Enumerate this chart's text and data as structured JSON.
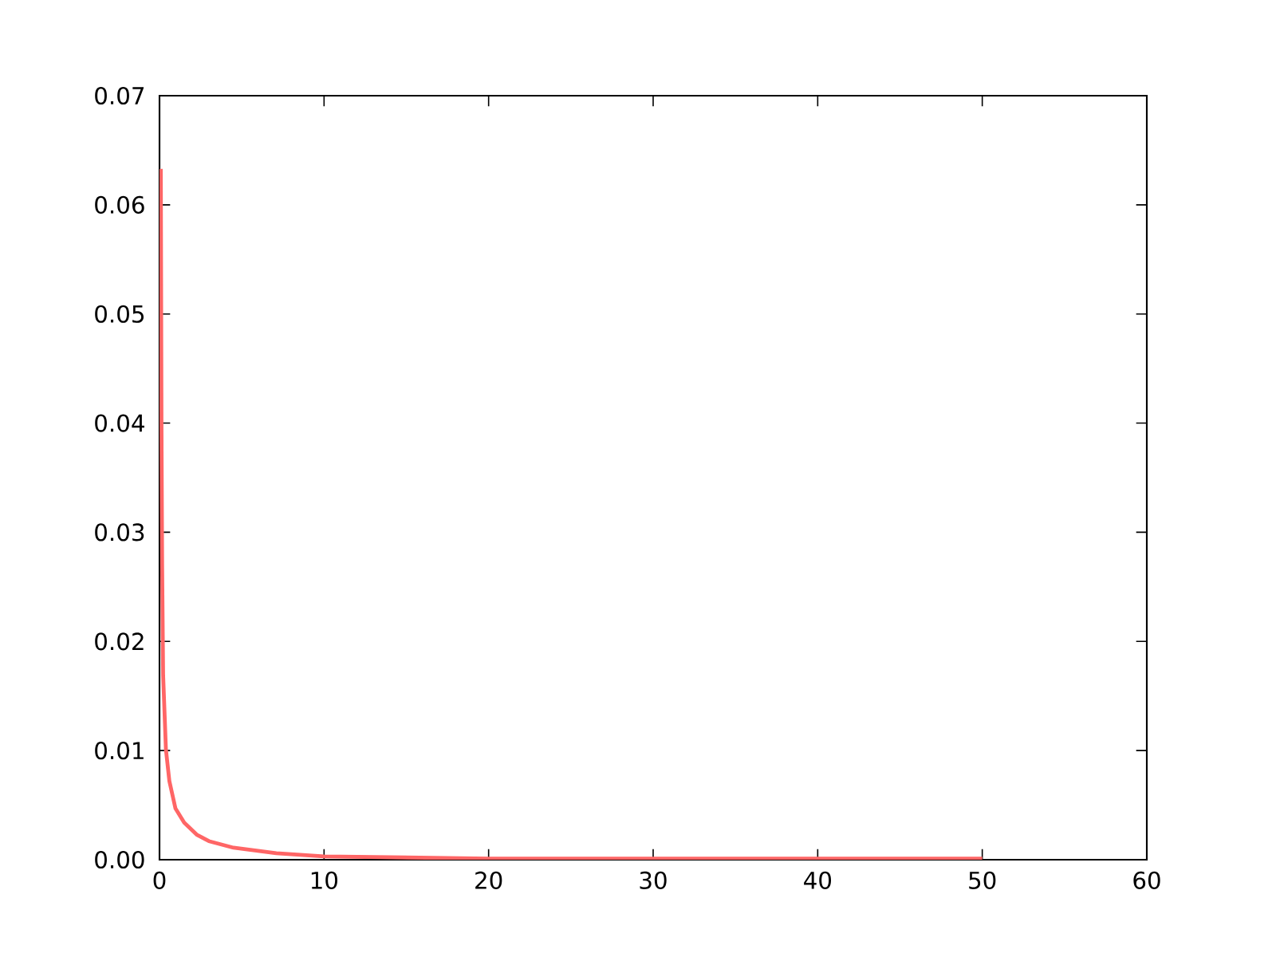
{
  "chart_data": {
    "type": "line",
    "x": [
      0.08,
      0.12,
      0.16,
      0.22,
      0.39,
      0.6,
      0.97,
      1.5,
      2.26,
      3,
      4.5,
      7.1,
      10,
      15,
      20,
      30,
      40,
      50
    ],
    "values": [
      0.0633,
      0.04,
      0.027,
      0.0169,
      0.0101,
      0.0072,
      0.0047,
      0.0034,
      0.0023,
      0.0017,
      0.0011,
      0.0006,
      0.0003,
      0.0002,
      0.0001,
      0.0001,
      0.0001,
      0.0001
    ],
    "color": "#ff6666",
    "xlim": [
      0,
      60
    ],
    "ylim": [
      0,
      0.07
    ],
    "xticks": [
      0,
      10,
      20,
      30,
      40,
      50,
      60
    ],
    "yticks": [
      {
        "value": 0,
        "label": "0.00"
      },
      {
        "value": 0.01,
        "label": "0.01"
      },
      {
        "value": 0.02,
        "label": "0.02"
      },
      {
        "value": 0.03,
        "label": "0.03"
      },
      {
        "value": 0.04,
        "label": "0.04"
      },
      {
        "value": 0.05,
        "label": "0.05"
      },
      {
        "value": 0.06,
        "label": "0.06"
      },
      {
        "value": 0.07,
        "label": "0.07"
      }
    ],
    "grid": false,
    "marker": "none",
    "line_style": "solid"
  }
}
